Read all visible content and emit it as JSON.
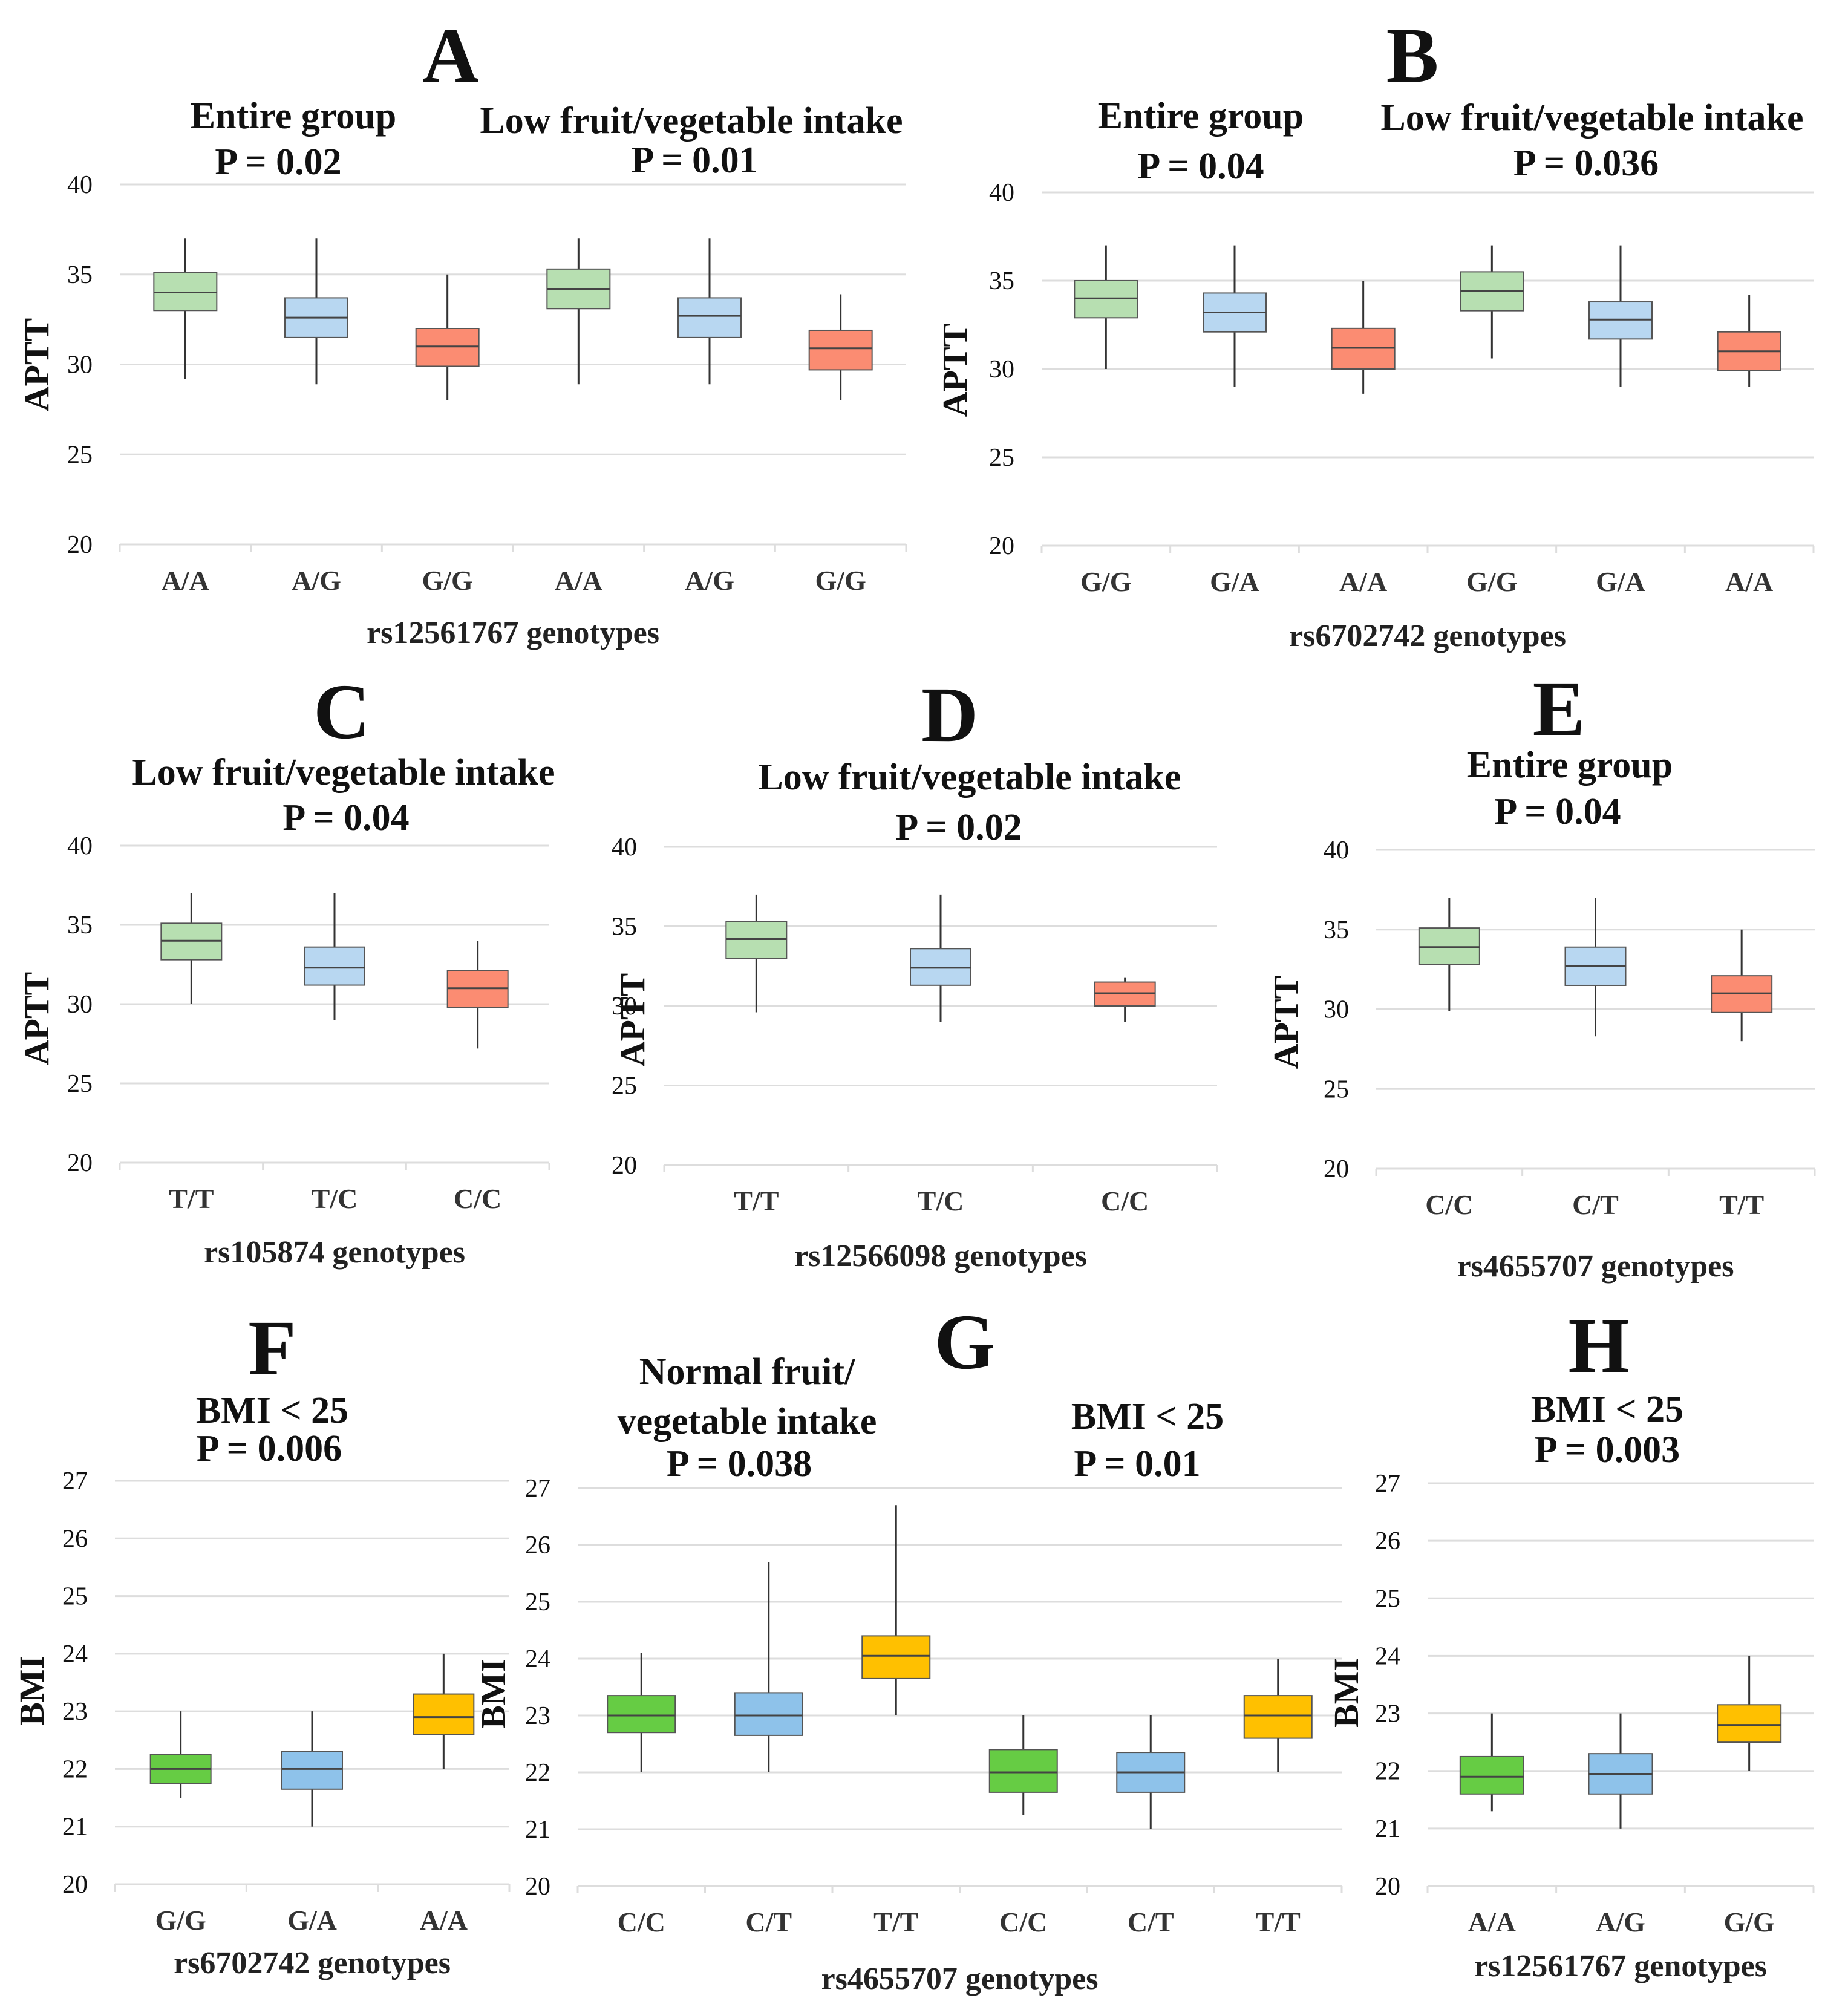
{
  "colors": {
    "green_light": "#b7dfb1",
    "blue_light": "#b8d7f1",
    "red_light": "#fb8c72",
    "green_bright": "#66cc44",
    "blue_bright": "#8ec2ea",
    "yellow": "#ffc000",
    "grid": "#dddddd",
    "whisker": "#333333"
  },
  "chart_data": [
    {
      "id": "A",
      "type": "box",
      "letter": "A",
      "ylabel": "APTT",
      "ylim": [
        20,
        40
      ],
      "yticks": [
        20,
        25,
        30,
        35,
        40
      ],
      "xlabel": "rs12561767 genotypes",
      "categories": [
        "A/A",
        "A/G",
        "G/G",
        "A/A",
        "A/G",
        "G/G"
      ],
      "colors": [
        "green_light",
        "blue_light",
        "red_light",
        "green_light",
        "blue_light",
        "red_light"
      ],
      "groups": [
        {
          "label": "Entire group",
          "p": "P = 0.02"
        },
        {
          "label": "Low fruit/vegetable intake",
          "p": "P = 0.01"
        }
      ],
      "boxes": [
        {
          "min": 29.2,
          "q1": 33.0,
          "median": 34.0,
          "q3": 35.1,
          "max": 37.0
        },
        {
          "min": 28.9,
          "q1": 31.5,
          "median": 32.6,
          "q3": 33.7,
          "max": 37.0
        },
        {
          "min": 28.0,
          "q1": 29.9,
          "median": 31.0,
          "q3": 32.0,
          "max": 35.0
        },
        {
          "min": 28.9,
          "q1": 33.1,
          "median": 34.2,
          "q3": 35.3,
          "max": 37.0
        },
        {
          "min": 28.9,
          "q1": 31.5,
          "median": 32.7,
          "q3": 33.7,
          "max": 37.0
        },
        {
          "min": 28.0,
          "q1": 29.7,
          "median": 30.9,
          "q3": 31.9,
          "max": 33.9
        }
      ]
    },
    {
      "id": "B",
      "type": "box",
      "letter": "B",
      "ylabel": "APTT",
      "ylim": [
        20,
        40
      ],
      "yticks": [
        20,
        25,
        30,
        35,
        40
      ],
      "xlabel": "rs6702742 genotypes",
      "categories": [
        "G/G",
        "G/A",
        "A/A",
        "G/G",
        "G/A",
        "A/A"
      ],
      "colors": [
        "green_light",
        "blue_light",
        "red_light",
        "green_light",
        "blue_light",
        "red_light"
      ],
      "groups": [
        {
          "label": "Entire group",
          "p": "P = 0.04"
        },
        {
          "label": "Low fruit/vegetable intake",
          "p": "P = 0.036"
        }
      ],
      "boxes": [
        {
          "min": 30.0,
          "q1": 32.9,
          "median": 34.0,
          "q3": 35.0,
          "max": 37.0
        },
        {
          "min": 29.0,
          "q1": 32.1,
          "median": 33.2,
          "q3": 34.3,
          "max": 37.0
        },
        {
          "min": 28.6,
          "q1": 30.0,
          "median": 31.2,
          "q3": 32.3,
          "max": 35.0
        },
        {
          "min": 30.6,
          "q1": 33.3,
          "median": 34.4,
          "q3": 35.5,
          "max": 37.0
        },
        {
          "min": 29.0,
          "q1": 31.7,
          "median": 32.8,
          "q3": 33.8,
          "max": 37.0
        },
        {
          "min": 29.0,
          "q1": 29.9,
          "median": 31.0,
          "q3": 32.1,
          "max": 34.2
        }
      ]
    },
    {
      "id": "C",
      "type": "box",
      "letter": "C",
      "ylabel": "APTT",
      "ylim": [
        20,
        40
      ],
      "yticks": [
        20,
        25,
        30,
        35,
        40
      ],
      "xlabel": "rs105874 genotypes",
      "categories": [
        "T/T",
        "T/C",
        "C/C"
      ],
      "colors": [
        "green_light",
        "blue_light",
        "red_light"
      ],
      "groups": [
        {
          "label": "Low fruit/vegetable intake",
          "p": "P = 0.04"
        }
      ],
      "boxes": [
        {
          "min": 30.0,
          "q1": 32.8,
          "median": 34.0,
          "q3": 35.1,
          "max": 37.0
        },
        {
          "min": 29.0,
          "q1": 31.2,
          "median": 32.3,
          "q3": 33.6,
          "max": 37.0
        },
        {
          "min": 27.2,
          "q1": 29.8,
          "median": 31.0,
          "q3": 32.1,
          "max": 34.0
        }
      ]
    },
    {
      "id": "D",
      "type": "box",
      "letter": "D",
      "ylabel": "APTT",
      "ylim": [
        20,
        40
      ],
      "yticks": [
        20,
        25,
        30,
        35,
        40
      ],
      "xlabel": "rs12566098 genotypes",
      "categories": [
        "T/T",
        "T/C",
        "C/C"
      ],
      "colors": [
        "green_light",
        "blue_light",
        "red_light"
      ],
      "groups": [
        {
          "label": "Low fruit/vegetable intake",
          "p": "P = 0.02"
        }
      ],
      "boxes": [
        {
          "min": 29.6,
          "q1": 33.0,
          "median": 34.2,
          "q3": 35.3,
          "max": 37.0
        },
        {
          "min": 29.0,
          "q1": 31.3,
          "median": 32.4,
          "q3": 33.6,
          "max": 37.0
        },
        {
          "min": 29.0,
          "q1": 30.0,
          "median": 30.8,
          "q3": 31.5,
          "max": 31.8
        }
      ]
    },
    {
      "id": "E",
      "type": "box",
      "letter": "E",
      "ylabel": "APTT",
      "ylim": [
        20,
        40
      ],
      "yticks": [
        20,
        25,
        30,
        35,
        40
      ],
      "xlabel": "rs4655707 genotypes",
      "categories": [
        "C/C",
        "C/T",
        "T/T"
      ],
      "colors": [
        "green_light",
        "blue_light",
        "red_light"
      ],
      "groups": [
        {
          "label": "Entire group",
          "p": "P = 0.04"
        }
      ],
      "boxes": [
        {
          "min": 29.9,
          "q1": 32.8,
          "median": 33.9,
          "q3": 35.1,
          "max": 37.0
        },
        {
          "min": 28.3,
          "q1": 31.5,
          "median": 32.7,
          "q3": 33.9,
          "max": 37.0
        },
        {
          "min": 28.0,
          "q1": 29.8,
          "median": 31.0,
          "q3": 32.1,
          "max": 35.0
        }
      ]
    },
    {
      "id": "F",
      "type": "box",
      "letter": "F",
      "ylabel": "BMI",
      "ylim": [
        20,
        27
      ],
      "yticks": [
        20,
        21,
        22,
        23,
        24,
        25,
        26,
        27
      ],
      "xlabel": "rs6702742 genotypes",
      "categories": [
        "G/G",
        "G/A",
        "A/A"
      ],
      "colors": [
        "green_bright",
        "blue_bright",
        "yellow"
      ],
      "groups": [
        {
          "label": "BMI < 25",
          "p": "P = 0.006"
        }
      ],
      "boxes": [
        {
          "min": 21.5,
          "q1": 21.75,
          "median": 22.0,
          "q3": 22.25,
          "max": 23.0
        },
        {
          "min": 21.0,
          "q1": 21.65,
          "median": 22.0,
          "q3": 22.3,
          "max": 23.0
        },
        {
          "min": 22.0,
          "q1": 22.6,
          "median": 22.9,
          "q3": 23.3,
          "max": 24.0
        }
      ]
    },
    {
      "id": "G",
      "type": "box",
      "letter": "G",
      "ylabel": "BMI",
      "ylim": [
        20,
        27
      ],
      "yticks": [
        20,
        21,
        22,
        23,
        24,
        25,
        26,
        27
      ],
      "xlabel": "rs4655707 genotypes",
      "categories": [
        "C/C",
        "C/T",
        "T/T",
        "C/C",
        "C/T",
        "T/T"
      ],
      "colors": [
        "green_bright",
        "blue_bright",
        "yellow",
        "green_bright",
        "blue_bright",
        "yellow"
      ],
      "groups": [
        {
          "label": "Normal fruit/",
          "label2": "vegetable intake",
          "p": "P = 0.038"
        },
        {
          "label": "BMI < 25",
          "p": "P = 0.01"
        }
      ],
      "boxes": [
        {
          "min": 22.0,
          "q1": 22.7,
          "median": 23.0,
          "q3": 23.35,
          "max": 24.1
        },
        {
          "min": 22.0,
          "q1": 22.65,
          "median": 23.0,
          "q3": 23.4,
          "max": 25.7
        },
        {
          "min": 23.0,
          "q1": 23.65,
          "median": 24.05,
          "q3": 24.4,
          "max": 26.7
        },
        {
          "min": 21.25,
          "q1": 21.65,
          "median": 22.0,
          "q3": 22.4,
          "max": 23.0
        },
        {
          "min": 21.0,
          "q1": 21.65,
          "median": 22.0,
          "q3": 22.35,
          "max": 23.0
        },
        {
          "min": 22.0,
          "q1": 22.6,
          "median": 23.0,
          "q3": 23.35,
          "max": 24.0
        }
      ]
    },
    {
      "id": "H",
      "type": "box",
      "letter": "H",
      "ylabel": "BMI",
      "ylim": [
        20,
        27
      ],
      "yticks": [
        20,
        21,
        22,
        23,
        24,
        25,
        26,
        27
      ],
      "xlabel": "rs12561767 genotypes",
      "categories": [
        "A/A",
        "A/G",
        "G/G"
      ],
      "colors": [
        "green_bright",
        "blue_bright",
        "yellow"
      ],
      "groups": [
        {
          "label": "BMI < 25",
          "p": "P = 0.003"
        }
      ],
      "boxes": [
        {
          "min": 21.3,
          "q1": 21.6,
          "median": 21.9,
          "q3": 22.25,
          "max": 23.0
        },
        {
          "min": 21.0,
          "q1": 21.6,
          "median": 21.95,
          "q3": 22.3,
          "max": 23.0
        },
        {
          "min": 22.0,
          "q1": 22.5,
          "median": 22.8,
          "q3": 23.15,
          "max": 24.0
        }
      ]
    }
  ]
}
